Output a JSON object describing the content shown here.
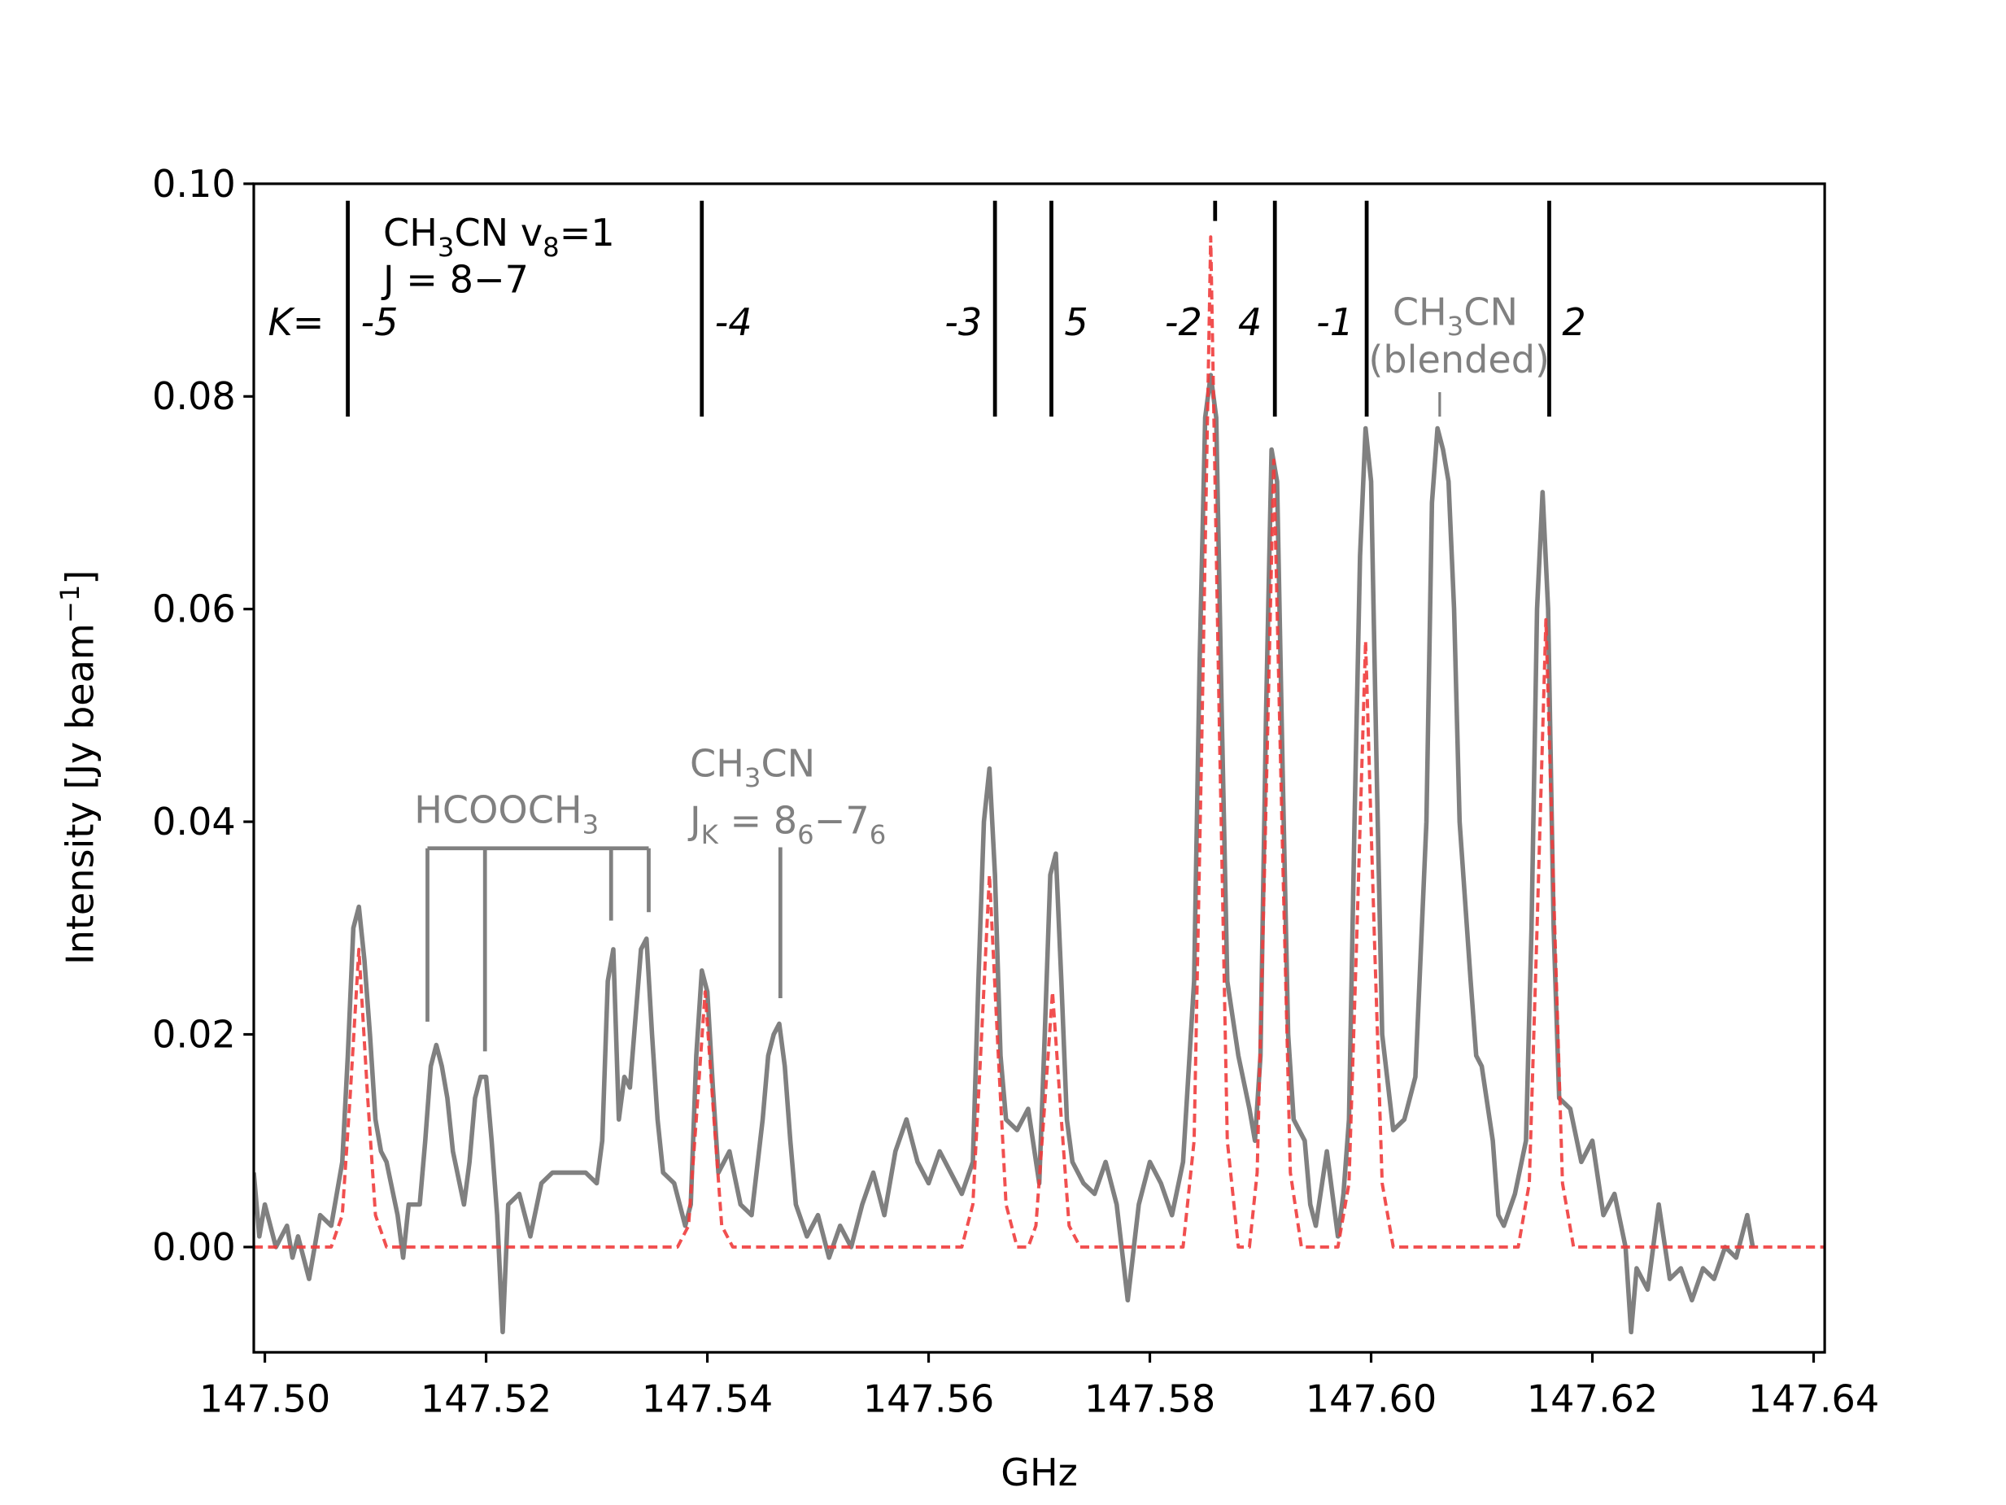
{
  "chart_data": {
    "type": "line",
    "xlabel": "GHz",
    "ylabel": [
      "Intensity [Jy beam",
      "−1",
      "]"
    ],
    "xlim": [
      147.499,
      147.641
    ],
    "ylim": [
      -0.0099,
      0.1
    ],
    "xticks": [
      {
        "value": 147.5,
        "label": "147.50"
      },
      147.52,
      147.54,
      147.56,
      147.58,
      {
        "value": 147.6,
        "label": "147.60"
      },
      147.62,
      147.64
    ],
    "yticks": [
      {
        "value": 0,
        "label": "0.00"
      },
      0.02,
      0.04,
      0.06,
      0.08,
      {
        "value": 0.1,
        "label": "0.10"
      }
    ],
    "series": [
      {
        "color": "#808080",
        "linestyle": "solid",
        "x": [
          147.499,
          147.4995,
          147.5,
          147.501,
          147.502,
          147.5025,
          147.503,
          147.504,
          147.505,
          147.506,
          147.507,
          147.5075,
          147.508,
          147.5085,
          147.509,
          147.5095,
          147.51,
          147.5105,
          147.511,
          147.512,
          147.5125,
          147.513,
          147.514,
          147.5145,
          147.515,
          147.5155,
          147.516,
          147.5165,
          147.517,
          147.518,
          147.5185,
          147.519,
          147.5195,
          147.52,
          147.5205,
          147.521,
          147.5215,
          147.522,
          147.523,
          147.524,
          147.525,
          147.526,
          147.527,
          147.528,
          147.529,
          147.53,
          147.5305,
          147.531,
          147.5315,
          147.532,
          147.5325,
          147.533,
          147.534,
          147.5345,
          147.535,
          147.5355,
          147.536,
          147.537,
          147.538,
          147.5385,
          147.539,
          147.5395,
          147.54,
          147.5405,
          147.541,
          147.542,
          147.543,
          147.544,
          147.545,
          147.5455,
          147.546,
          147.5465,
          147.547,
          147.5475,
          147.548,
          147.549,
          147.55,
          147.551,
          147.552,
          147.553,
          147.554,
          147.555,
          147.556,
          147.557,
          147.558,
          147.559,
          147.56,
          147.561,
          147.562,
          147.563,
          147.564,
          147.5645,
          147.565,
          147.5655,
          147.566,
          147.5665,
          147.567,
          147.568,
          147.569,
          147.57,
          147.5705,
          147.571,
          147.5715,
          147.572,
          147.5725,
          147.573,
          147.574,
          147.575,
          147.576,
          147.577,
          147.578,
          147.579,
          147.58,
          147.581,
          147.582,
          147.583,
          147.584,
          147.5845,
          147.585,
          147.5855,
          147.586,
          147.5865,
          147.587,
          147.588,
          147.589,
          147.5895,
          147.59,
          147.5905,
          147.591,
          147.5915,
          147.592,
          147.5925,
          147.593,
          147.594,
          147.5945,
          147.595,
          147.596,
          147.597,
          147.5975,
          147.598,
          147.5985,
          147.599,
          147.5995,
          147.6,
          147.6005,
          147.601,
          147.602,
          147.603,
          147.604,
          147.605,
          147.6055,
          147.606,
          147.6065,
          147.607,
          147.6075,
          147.608,
          147.609,
          147.6095,
          147.61,
          147.611,
          147.6115,
          147.612,
          147.613,
          147.614,
          147.6145,
          147.615,
          147.6155,
          147.616,
          147.6165,
          147.617,
          147.618,
          147.619,
          147.62,
          147.621,
          147.622,
          147.623,
          147.6235,
          147.624,
          147.625,
          147.626,
          147.627,
          147.628,
          147.629,
          147.63,
          147.631,
          147.632,
          147.633,
          147.634,
          147.6345
        ],
        "values": [
          0.007,
          0.001,
          0.004,
          0.0,
          0.002,
          -0.001,
          0.001,
          -0.003,
          0.003,
          0.002,
          0.008,
          0.018,
          0.03,
          0.032,
          0.027,
          0.02,
          0.012,
          0.009,
          0.008,
          0.003,
          -0.001,
          0.004,
          0.004,
          0.01,
          0.017,
          0.019,
          0.017,
          0.014,
          0.009,
          0.004,
          0.008,
          0.014,
          0.016,
          0.016,
          0.01,
          0.003,
          -0.008,
          0.004,
          0.005,
          0.001,
          0.006,
          0.007,
          0.007,
          0.007,
          0.007,
          0.006,
          0.01,
          0.025,
          0.028,
          0.012,
          0.016,
          0.015,
          0.028,
          0.029,
          0.02,
          0.012,
          0.007,
          0.006,
          0.002,
          0.004,
          0.018,
          0.026,
          0.024,
          0.015,
          0.007,
          0.009,
          0.004,
          0.003,
          0.012,
          0.018,
          0.02,
          0.021,
          0.017,
          0.01,
          0.004,
          0.001,
          0.003,
          -0.001,
          0.002,
          0.0,
          0.004,
          0.007,
          0.003,
          0.009,
          0.012,
          0.008,
          0.006,
          0.009,
          0.007,
          0.005,
          0.008,
          0.025,
          0.04,
          0.045,
          0.035,
          0.018,
          0.012,
          0.011,
          0.013,
          0.006,
          0.02,
          0.035,
          0.037,
          0.025,
          0.012,
          0.008,
          0.006,
          0.005,
          0.008,
          0.004,
          -0.005,
          0.004,
          0.008,
          0.006,
          0.003,
          0.008,
          0.025,
          0.055,
          0.078,
          0.082,
          0.078,
          0.05,
          0.025,
          0.018,
          0.013,
          0.01,
          0.018,
          0.05,
          0.075,
          0.072,
          0.045,
          0.02,
          0.012,
          0.01,
          0.004,
          0.002,
          0.009,
          0.001,
          0.005,
          0.012,
          0.04,
          0.065,
          0.077,
          0.072,
          0.045,
          0.02,
          0.011,
          0.012,
          0.016,
          0.04,
          0.07,
          0.077,
          0.075,
          0.072,
          0.06,
          0.04,
          0.025,
          0.018,
          0.017,
          0.01,
          0.003,
          0.002,
          0.005,
          0.01,
          0.03,
          0.06,
          0.071,
          0.06,
          0.03,
          0.014,
          0.013,
          0.008,
          0.01,
          0.003,
          0.005,
          0.0,
          -0.008,
          -0.002,
          -0.004,
          0.004,
          -0.003,
          -0.002,
          -0.005,
          -0.002,
          -0.003,
          0.0,
          -0.001,
          0.003,
          0.0
        ]
      },
      {
        "color": "#f03c3c",
        "linestyle": "dashed",
        "x": [
          147.499,
          147.506,
          147.507,
          147.5077,
          147.5085,
          147.5093,
          147.51,
          147.511,
          147.5373,
          147.5383,
          147.539,
          147.5398,
          147.5406,
          147.5413,
          147.5423,
          147.563,
          147.564,
          147.5647,
          147.5655,
          147.5663,
          147.567,
          147.568,
          147.569,
          147.5697,
          147.5704,
          147.5712,
          147.572,
          147.5727,
          147.5737,
          147.583,
          147.584,
          147.5847,
          147.5855,
          147.5863,
          147.587,
          147.588,
          147.589,
          147.5897,
          147.5904,
          147.5912,
          147.592,
          147.5927,
          147.5937,
          147.597,
          147.598,
          147.5987,
          147.5995,
          147.6003,
          147.601,
          147.602,
          147.6133,
          147.6143,
          147.615,
          147.6158,
          147.6166,
          147.6173,
          147.6183,
          147.641
        ],
        "values": [
          0,
          0,
          0.003,
          0.014,
          0.028,
          0.014,
          0.003,
          0,
          0,
          0.002,
          0.012,
          0.024,
          0.012,
          0.002,
          0,
          0,
          0.004,
          0.018,
          0.035,
          0.018,
          0.004,
          0,
          0,
          0.002,
          0.012,
          0.024,
          0.012,
          0.002,
          0,
          0,
          0.01,
          0.048,
          0.095,
          0.048,
          0.01,
          0,
          0,
          0.007,
          0.037,
          0.074,
          0.037,
          0.007,
          0,
          0,
          0.006,
          0.029,
          0.057,
          0.029,
          0.006,
          0,
          0,
          0.006,
          0.03,
          0.059,
          0.03,
          0.006,
          0,
          0
        ]
      }
    ],
    "annotations": {
      "title_lines": [
        [
          "CH",
          "3",
          "CN v",
          "8",
          "=1"
        ],
        [
          "J = 8−7"
        ]
      ],
      "k_prefix": "K=",
      "k_lines": [
        {
          "x": 147.5075,
          "label": "-5",
          "y": [
            0.0984,
            0.0781
          ]
        },
        {
          "x": 147.5395,
          "label": "-4",
          "y": [
            0.0984,
            0.0781
          ]
        },
        {
          "x": 147.566,
          "label": "-3",
          "y": [
            0.0984,
            0.0781
          ]
        },
        {
          "x": 147.5711,
          "label": "5",
          "y": [
            0.0984,
            0.0781
          ]
        },
        {
          "x": 147.5859,
          "label": "-2",
          "y": [
            0.0984,
            0.0965
          ]
        },
        {
          "x": 147.5913,
          "label": "4",
          "y": [
            0.0984,
            0.0781
          ]
        },
        {
          "x": 147.5996,
          "label": "-1",
          "y": [
            0.0984,
            0.0781
          ]
        },
        {
          "x": 147.6161,
          "label": "2",
          "y": [
            0.0984,
            0.0781
          ]
        }
      ],
      "blended": {
        "label": [
          "CH",
          "3",
          "CN"
        ],
        "note": "(blended)",
        "x": 147.6062,
        "y": [
          0.0804,
          0.0781
        ]
      },
      "hcooch3": {
        "label": [
          "HCOOCH",
          "3"
        ],
        "y": 0.0375,
        "legs": [
          {
            "x": 147.5147,
            "y": 0.0212
          },
          {
            "x": 147.5199,
            "y": 0.0184
          },
          {
            "x": 147.5313,
            "y": 0.0307
          },
          {
            "x": 147.5347,
            "y": 0.0315
          }
        ]
      },
      "ch3cn_86": {
        "label": [
          "CH",
          "3",
          "CN"
        ],
        "label2": [
          "J",
          "K",
          " = 8",
          "6",
          "−7",
          "6"
        ],
        "x": 147.5466,
        "y": [
          0.0376,
          0.0234
        ]
      }
    }
  }
}
